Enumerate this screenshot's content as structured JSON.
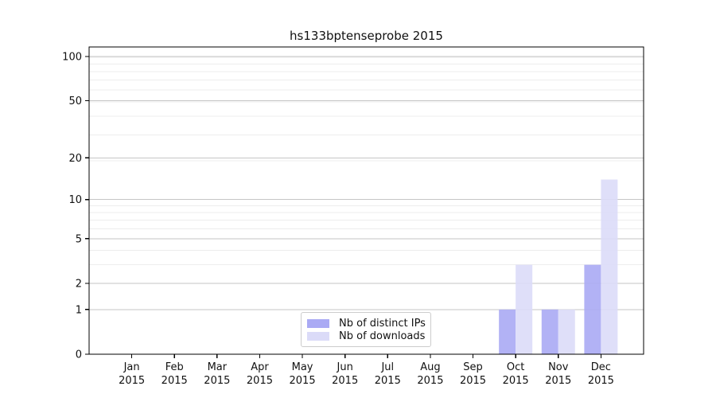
{
  "chart_data": {
    "type": "bar",
    "title": "hs133bptenseprobe 2015",
    "categories": [
      "Jan",
      "Feb",
      "Mar",
      "Apr",
      "May",
      "Jun",
      "Jul",
      "Aug",
      "Sep",
      "Oct",
      "Nov",
      "Dec"
    ],
    "category_year": "2015",
    "series": [
      {
        "name": "Nb of distinct IPs",
        "color": "#aaaaf4",
        "values": [
          0,
          0,
          0,
          0,
          0,
          0,
          0,
          0,
          0,
          1,
          1,
          3
        ]
      },
      {
        "name": "Nb of downloads",
        "color": "#dbdbf8",
        "values": [
          0,
          0,
          0,
          0,
          0,
          0,
          0,
          0,
          0,
          3,
          1,
          14
        ]
      }
    ],
    "yticks": [
      0,
      1,
      2,
      5,
      10,
      20,
      50,
      100
    ],
    "ylim": [
      0,
      100
    ],
    "yscale": "log10(1+x)",
    "grid": "on",
    "legend_position": "bottom-center",
    "colors": {
      "axis": "#000000",
      "grid_major": "#c6c6c6",
      "grid_minor": "#ededed",
      "text": "#111111"
    }
  }
}
